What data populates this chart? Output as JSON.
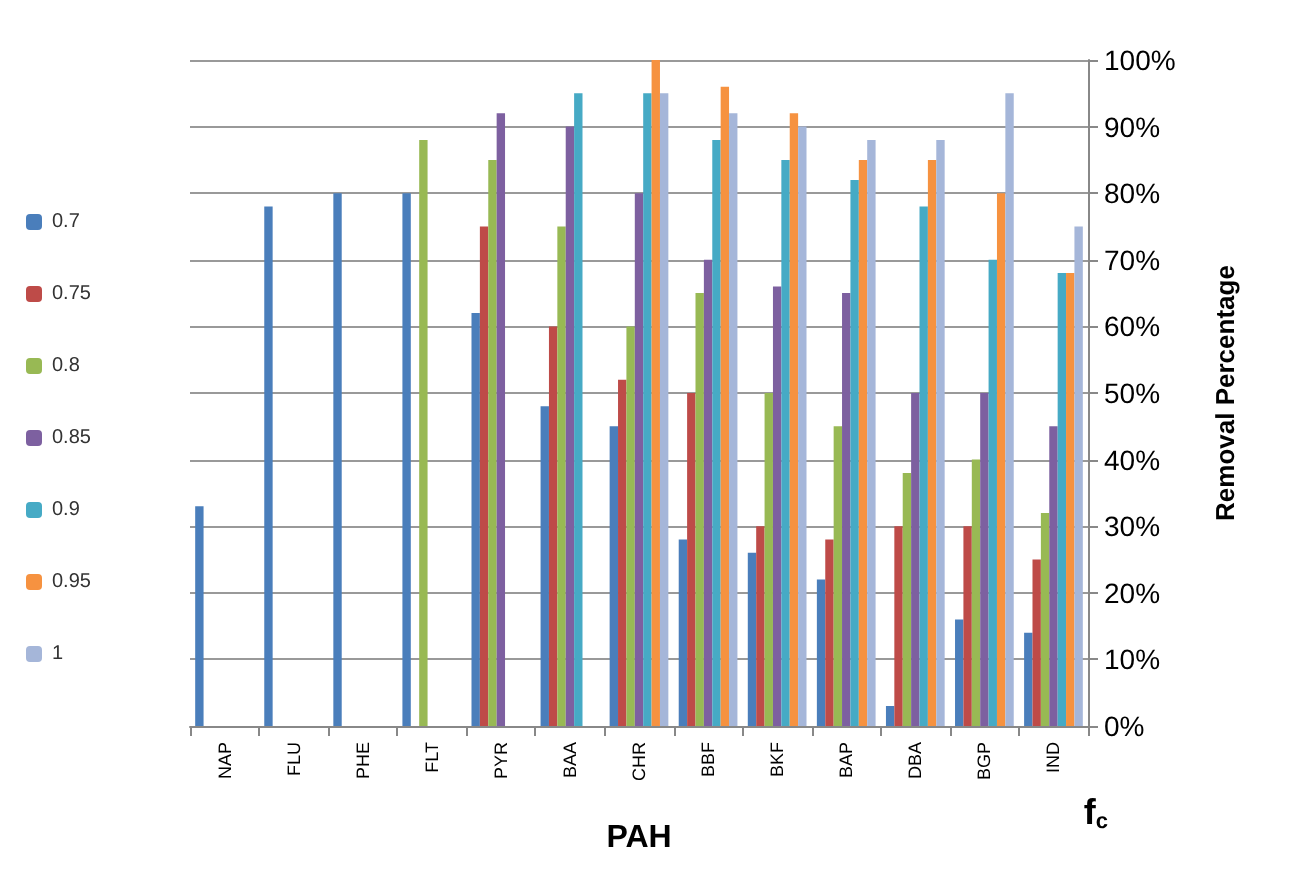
{
  "chart_data": {
    "type": "bar",
    "xlabel": "PAH",
    "ylabel": "Removal Percentage",
    "legend_title": "f$_{c}$",
    "categories": [
      "NAP",
      "FLU",
      "PHE",
      "FLT",
      "PYR",
      "BAA",
      "CHR",
      "BBF",
      "BKF",
      "BAP",
      "DBA",
      "BGP",
      "IND"
    ],
    "series": [
      {
        "name": "0.7",
        "color": "#4a7ebb",
        "values": [
          33,
          78,
          80,
          80,
          62,
          48,
          45,
          28,
          26,
          22,
          3,
          16,
          14
        ]
      },
      {
        "name": "0.75",
        "color": "#be4b48",
        "values": [
          null,
          null,
          null,
          null,
          75,
          60,
          52,
          50,
          30,
          28,
          30,
          30,
          25
        ]
      },
      {
        "name": "0.8",
        "color": "#98b954",
        "values": [
          null,
          null,
          null,
          88,
          85,
          75,
          60,
          65,
          50,
          45,
          38,
          40,
          32
        ]
      },
      {
        "name": "0.85",
        "color": "#7d60a0",
        "values": [
          null,
          null,
          null,
          null,
          92,
          90,
          80,
          70,
          66,
          65,
          50,
          50,
          45
        ]
      },
      {
        "name": "0.9",
        "color": "#46aac5",
        "values": [
          null,
          null,
          null,
          null,
          null,
          95,
          95,
          88,
          85,
          82,
          78,
          70,
          68
        ]
      },
      {
        "name": "0.95",
        "color": "#f69240",
        "values": [
          null,
          null,
          null,
          null,
          null,
          null,
          100,
          96,
          92,
          85,
          85,
          80,
          68
        ]
      },
      {
        "name": "1",
        "color": "#a5b6d9",
        "values": [
          null,
          null,
          null,
          null,
          null,
          null,
          95,
          92,
          90,
          88,
          88,
          95,
          75
        ]
      }
    ],
    "ylim": [
      0,
      100
    ],
    "yticks": [
      {
        "value": 0,
        "label": "0%"
      },
      {
        "value": 10,
        "label": "10%"
      },
      {
        "value": 20,
        "label": "20%"
      },
      {
        "value": 30,
        "label": "30%"
      },
      {
        "value": 40,
        "label": "40%"
      },
      {
        "value": 50,
        "label": "50%"
      },
      {
        "value": 60,
        "label": "60%"
      },
      {
        "value": 70,
        "label": "70%"
      },
      {
        "value": 80,
        "label": "80%"
      },
      {
        "value": 90,
        "label": "90%"
      },
      {
        "value": 100,
        "label": "100%"
      }
    ],
    "grid": "y",
    "legend": "left"
  }
}
